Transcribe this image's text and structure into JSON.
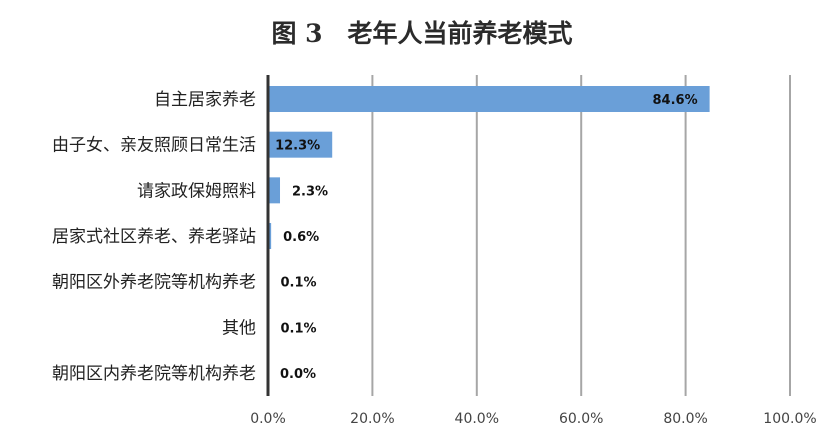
{
  "chart_data": {
    "type": "bar",
    "orientation": "horizontal",
    "title": "图 3　老年人当前养老模式",
    "xlabel": "",
    "ylabel": "",
    "categories": [
      "自主居家养老",
      "由子女、亲友照顾日常生活",
      "请家政保姆照料",
      "居家式社区养老、养老驿站",
      "朝阳区外养老院等机构养老",
      "其他",
      "朝阳区内养老院等机构养老"
    ],
    "values": [
      84.6,
      12.3,
      2.3,
      0.6,
      0.1,
      0.1,
      0.0
    ],
    "data_labels": [
      "84.6%",
      "12.3%",
      "2.3%",
      "0.6%",
      "0.1%",
      "0.1%",
      "0.0%"
    ],
    "xlim": [
      0,
      100
    ],
    "x_ticks": [
      0,
      20,
      40,
      60,
      80,
      100
    ],
    "x_tick_labels": [
      "0.0%",
      "20.0%",
      "40.0%",
      "60.0%",
      "80.0%",
      "100.0%"
    ],
    "grid": true,
    "bar_color": "#6a9fd8",
    "grid_color": "#a6a6a6",
    "axis_color": "#333333"
  }
}
